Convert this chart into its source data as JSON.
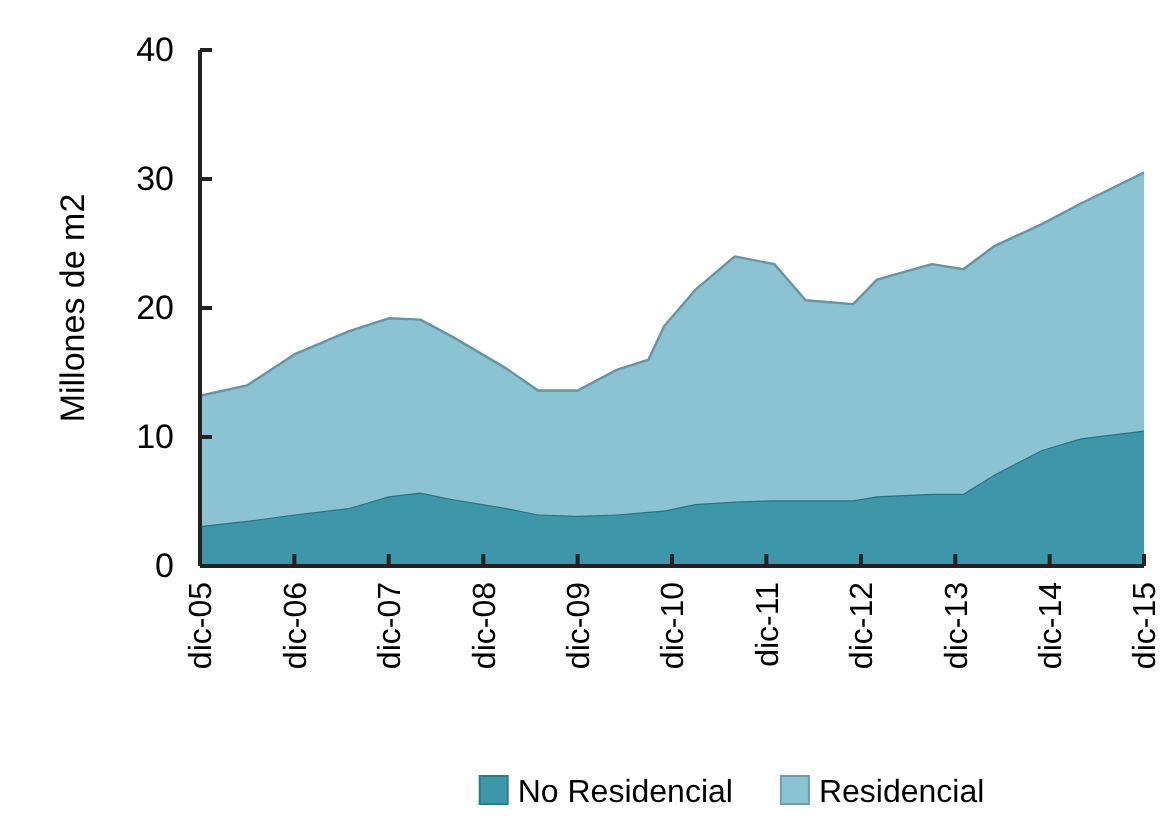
{
  "chart_data": {
    "type": "area",
    "stacked": true,
    "ylabel": "Millones de m2",
    "x": [
      "2005-12",
      "2006-06",
      "2006-12",
      "2007-07",
      "2007-12",
      "2008-04",
      "2008-08",
      "2009-03",
      "2009-07",
      "2009-12",
      "2010-05",
      "2010-09",
      "2010-11",
      "2011-03",
      "2011-08",
      "2012-01",
      "2012-05",
      "2012-11",
      "2013-02",
      "2013-09",
      "2014-01",
      "2014-05",
      "2014-11",
      "2015-04",
      "2015-12"
    ],
    "series": [
      {
        "name": "No Residencial",
        "color": "#3d97a8",
        "values": [
          3.1,
          3.5,
          4.0,
          4.5,
          5.4,
          5.7,
          5.2,
          4.5,
          4.0,
          3.9,
          4.0,
          4.2,
          4.3,
          4.8,
          5.0,
          5.1,
          5.1,
          5.1,
          5.4,
          5.6,
          5.6,
          7.1,
          9.0,
          9.9,
          10.5
        ]
      },
      {
        "name": "Residencial",
        "color": "#8cc3d3",
        "values": [
          10.1,
          10.5,
          12.4,
          13.7,
          13.8,
          13.4,
          12.6,
          10.8,
          9.6,
          9.7,
          11.2,
          11.8,
          14.3,
          16.6,
          19.0,
          18.3,
          15.5,
          15.2,
          16.8,
          17.8,
          17.4,
          17.7,
          17.5,
          18.2,
          20.0
        ]
      }
    ],
    "xlim": [
      "2005-12",
      "2015-12"
    ],
    "xticks": [
      {
        "value": "2005-12",
        "label": "dic-05"
      },
      {
        "value": "2006-12",
        "label": "dic-06"
      },
      {
        "value": "2007-12",
        "label": "dic-07"
      },
      {
        "value": "2008-12",
        "label": "dic-08"
      },
      {
        "value": "2009-12",
        "label": "dic-09"
      },
      {
        "value": "2010-12",
        "label": "dic-10"
      },
      {
        "value": "2011-12",
        "label": "dic-11"
      },
      {
        "value": "2012-12",
        "label": "dic-12"
      },
      {
        "value": "2013-12",
        "label": "dic-13"
      },
      {
        "value": "2014-12",
        "label": "dic-14"
      },
      {
        "value": "2015-12",
        "label": "dic-15"
      }
    ],
    "ylim": [
      0,
      40
    ],
    "yticks": [
      0,
      10,
      20,
      30,
      40
    ],
    "legend": "bottom"
  }
}
